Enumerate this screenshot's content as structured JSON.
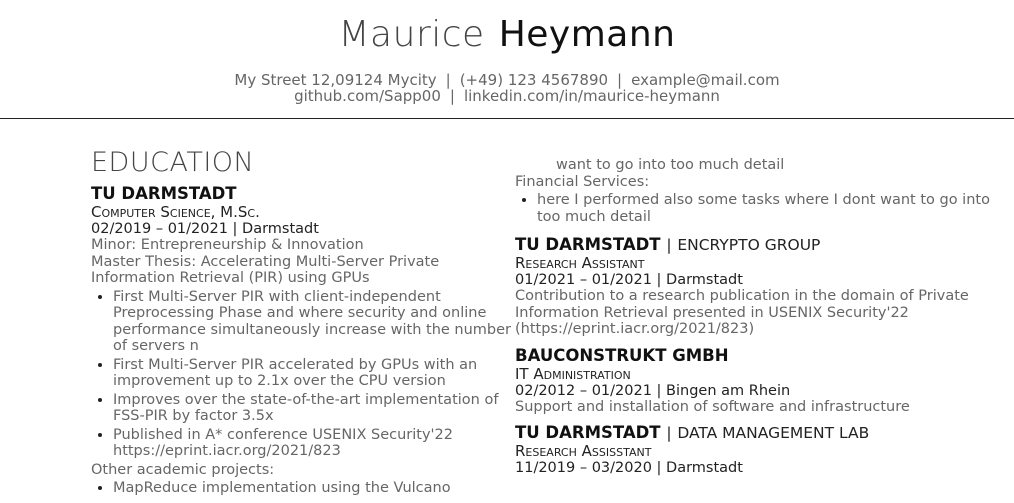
{
  "header": {
    "first_name": "Maurice",
    "last_name": "Heymann",
    "address": "My Street 12,09124 Mycity",
    "separator": "|",
    "phone": "(+49) 123 4567890",
    "email": "example@mail.com",
    "github": "github.com/Sapp00",
    "linkedin": "linkedin.com/in/maurice-heymann"
  },
  "education": {
    "title": "EDUCATION",
    "school": "TU DARMSTADT",
    "degree": "Computer Science, M.Sc.",
    "dates_location": "02/2019 – 01/2021 | Darmstadt",
    "minor": "Minor: Entrepreneurship & Innovation",
    "thesis": "Master Thesis: Accelerating Multi-Server Private Information Retrieval (PIR) using GPUs",
    "bullets": [
      "First Multi-Server PIR with client-independent Preprocessing Phase and where security and online performance simultaneously increase with the number of servers n",
      "First Multi-Server PIR accelerated by GPUs with an improvement up to 2.1x over the CPU version",
      "Improves over the state-of-the-art implementation of FSS-PIR by factor 3.5x",
      "Published in A* conference USENIX Security'22 https://eprint.iacr.org/2021/823"
    ],
    "other_projects": "Other academic projects:",
    "other_bullet": "MapReduce implementation using the Vulcano"
  },
  "right": {
    "continued_text": "want to go into too much detail",
    "financial_label": "Financial Services:",
    "financial_bullet": "here I performed also some tasks where I dont want to go into too much detail",
    "jobs": [
      {
        "org": "TU DARMSTADT",
        "dept": "ENCRYPTO GROUP",
        "role": "Research Assistant",
        "dates_location": "01/2021 – 01/2021 | Darmstadt",
        "desc": "Contribution to a research publication in the domain of Private Information Retrieval presented in USENIX Security'22 (https://eprint.iacr.org/2021/823)"
      },
      {
        "org": "BAUCONSTRUKT GMBH",
        "dept": "",
        "role": "IT Administration",
        "dates_location": "02/2012 – 01/2021 | Bingen am Rhein",
        "desc": "Support and installation of software and infrastructure"
      },
      {
        "org": "TU DARMSTADT",
        "dept": "DATA MANAGEMENT LAB",
        "role": "Research Assisstant",
        "dates_location": "11/2019 – 03/2020 | Darmstadt",
        "desc": ""
      }
    ]
  }
}
